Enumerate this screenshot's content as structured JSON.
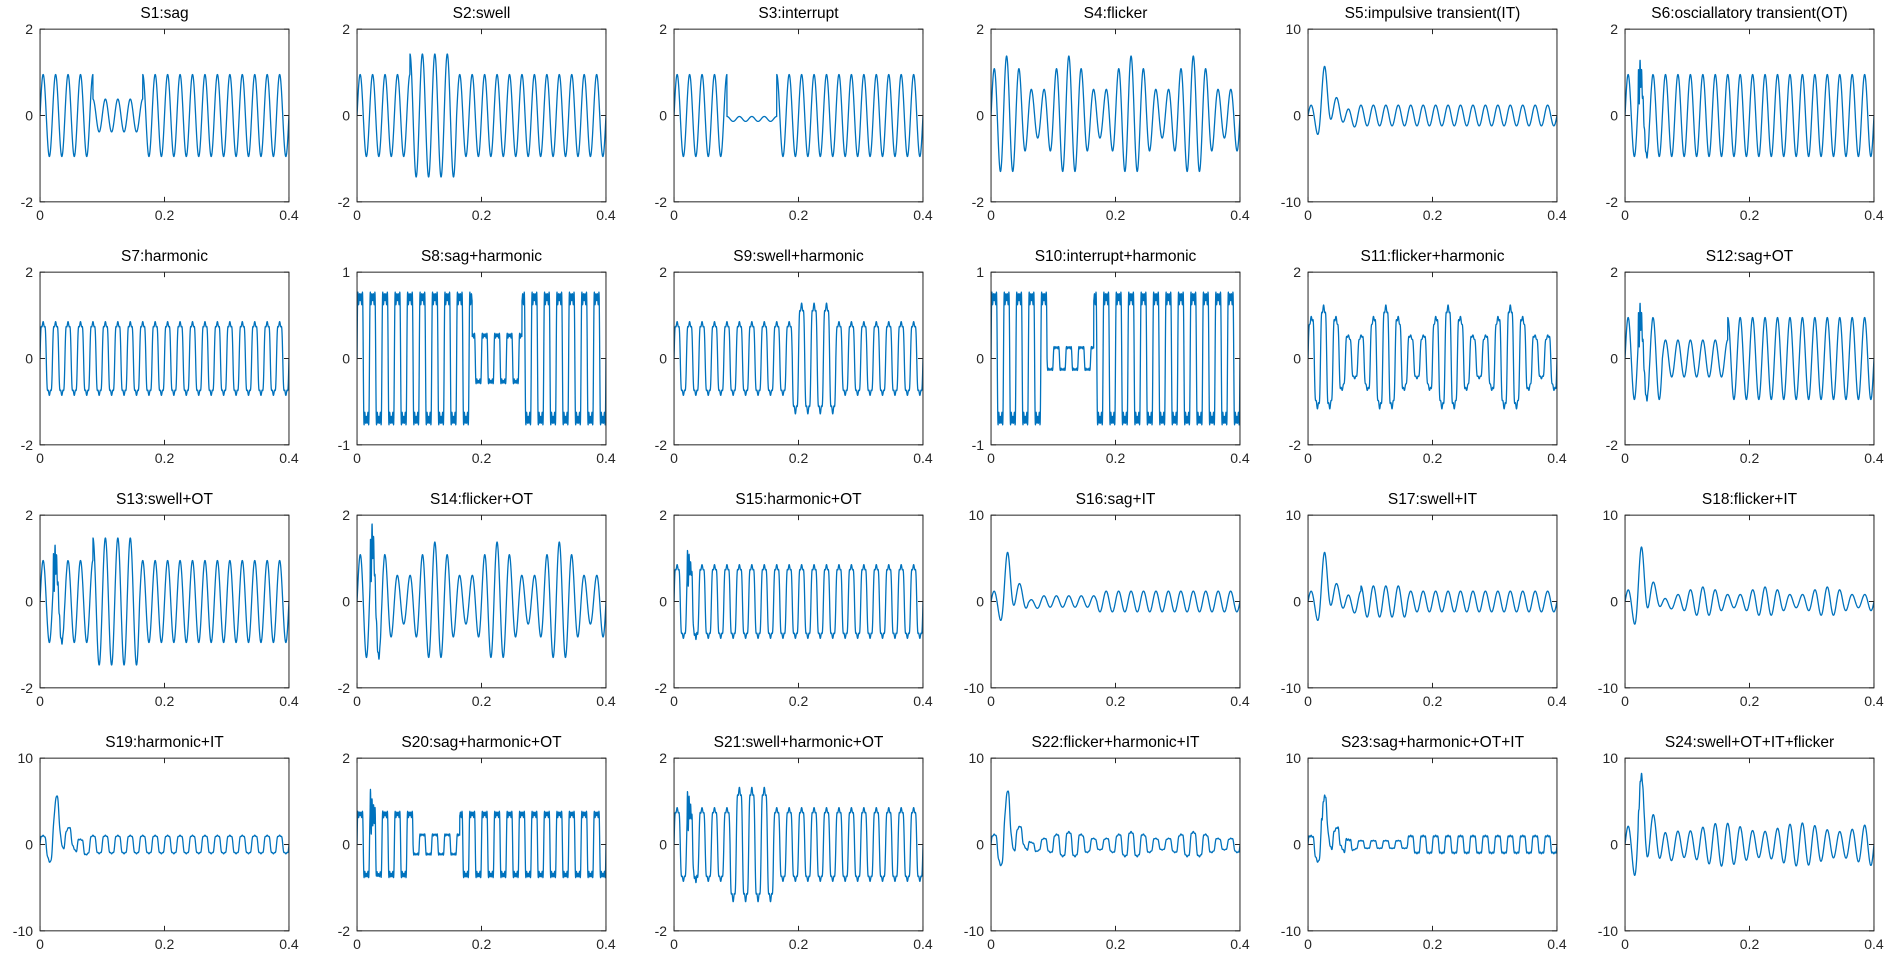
{
  "figure": {
    "title": "24 power-quality disturbance signal waveforms (4x6 grid)",
    "background": "#ffffff",
    "line_color": "#0072BD",
    "axis_color": "#262626",
    "tick_label_color": "#262626",
    "rows": 4,
    "cols": 6
  },
  "chart_data": {
    "type": "line",
    "grid": "off",
    "x_axis": {
      "range": [
        0,
        0.4
      ],
      "ticks": [
        0,
        0.2,
        0.4
      ],
      "unit": "s"
    },
    "fundamental_hz": 50,
    "plots": [
      {
        "id": "S1",
        "title": "S1:sag",
        "xlim": [
          0,
          0.4
        ],
        "ylim": [
          -2,
          2
        ],
        "xticks": [
          0,
          0.2,
          0.4
        ],
        "yticks": [
          -2,
          0,
          2
        ],
        "signal": {
          "fundamental_hz": 50,
          "amplitude": 0.95,
          "events": [
            {
              "type": "sag",
              "t1": 0.085,
              "t2": 0.165,
              "gain": 0.4
            }
          ]
        }
      },
      {
        "id": "S2",
        "title": "S2:swell",
        "xlim": [
          0,
          0.4
        ],
        "ylim": [
          -2,
          2
        ],
        "xticks": [
          0,
          0.2,
          0.4
        ],
        "yticks": [
          -2,
          0,
          2
        ],
        "signal": {
          "fundamental_hz": 50,
          "amplitude": 0.95,
          "events": [
            {
              "type": "swell",
              "t1": 0.085,
              "t2": 0.16,
              "gain": 1.5
            }
          ]
        }
      },
      {
        "id": "S3",
        "title": "S3:interrupt",
        "xlim": [
          0,
          0.4
        ],
        "ylim": [
          -2,
          2
        ],
        "xticks": [
          0,
          0.2,
          0.4
        ],
        "yticks": [
          -2,
          0,
          2
        ],
        "signal": {
          "fundamental_hz": 50,
          "amplitude": 0.95,
          "events": [
            {
              "type": "interrupt",
              "t1": 0.085,
              "t2": 0.165,
              "gain": 0.06,
              "dc": -0.08
            }
          ]
        }
      },
      {
        "id": "S4",
        "title": "S4:flicker",
        "xlim": [
          0,
          0.4
        ],
        "ylim": [
          -2,
          2
        ],
        "xticks": [
          0,
          0.2,
          0.4
        ],
        "yticks": [
          -2,
          0,
          2
        ],
        "signal": {
          "fundamental_hz": 50,
          "amplitude": 0.95,
          "flicker": {
            "depth": 0.45,
            "hz": 10
          }
        }
      },
      {
        "id": "S5",
        "title": "S5:impulsive transient(IT)",
        "xlim": [
          0,
          0.4
        ],
        "ylim": [
          -10,
          10
        ],
        "xticks": [
          0,
          0.2,
          0.4
        ],
        "yticks": [
          -10,
          0,
          10
        ],
        "signal": {
          "fundamental_hz": 50,
          "amplitude": 1.2,
          "transients": [
            {
              "type": "impulsive",
              "t0": 0.018,
              "amp": 4.8
            }
          ]
        }
      },
      {
        "id": "S6",
        "title": "S6:osciallatory transient(OT)",
        "xlim": [
          0,
          0.4
        ],
        "ylim": [
          -2,
          2
        ],
        "xticks": [
          0,
          0.2,
          0.4
        ],
        "yticks": [
          -2,
          0,
          2
        ],
        "signal": {
          "fundamental_hz": 50,
          "amplitude": 0.95,
          "transients": [
            {
              "type": "oscillatory",
              "t0": 0.021,
              "amp": 0.7,
              "hz": 400,
              "tau": 0.005
            }
          ]
        }
      },
      {
        "id": "S7",
        "title": "S7:harmonic",
        "xlim": [
          0,
          0.4
        ],
        "ylim": [
          -2,
          2
        ],
        "xticks": [
          0,
          0.2,
          0.4
        ],
        "yticks": [
          -2,
          0,
          2
        ],
        "signal": {
          "fundamental_hz": 50,
          "amplitude": 0.95,
          "harmonics": [
            [
              3,
              0.2
            ],
            [
              5,
              0.1
            ]
          ]
        }
      },
      {
        "id": "S8",
        "title": "S8:sag+harmonic",
        "xlim": [
          0,
          0.4
        ],
        "ylim": [
          -1,
          1
        ],
        "xticks": [
          0,
          0.2,
          0.4
        ],
        "yticks": [
          -1,
          0,
          1
        ],
        "signal": {
          "fundamental_hz": 50,
          "amplitude": 0.88,
          "harmonics": [
            [
              3,
              0.3
            ],
            [
              5,
              0.18
            ],
            [
              7,
              0.12
            ]
          ],
          "events": [
            {
              "type": "sag",
              "t1": 0.185,
              "t2": 0.265,
              "gain": 0.38
            }
          ]
        }
      },
      {
        "id": "S9",
        "title": "S9:swell+harmonic",
        "xlim": [
          0,
          0.4
        ],
        "ylim": [
          -2,
          2
        ],
        "xticks": [
          0,
          0.2,
          0.4
        ],
        "yticks": [
          -2,
          0,
          2
        ],
        "signal": {
          "fundamental_hz": 50,
          "amplitude": 0.95,
          "harmonics": [
            [
              3,
              0.2
            ],
            [
              5,
              0.1
            ]
          ],
          "events": [
            {
              "type": "swell",
              "t1": 0.19,
              "t2": 0.26,
              "gain": 1.5
            }
          ]
        }
      },
      {
        "id": "S10",
        "title": "S10:interrupt+harmonic",
        "xlim": [
          0,
          0.4
        ],
        "ylim": [
          -1,
          1
        ],
        "xticks": [
          0,
          0.2,
          0.4
        ],
        "yticks": [
          -1,
          0,
          1
        ],
        "signal": {
          "fundamental_hz": 50,
          "amplitude": 0.88,
          "harmonics": [
            [
              3,
              0.3
            ],
            [
              5,
              0.18
            ],
            [
              7,
              0.12
            ]
          ],
          "events": [
            {
              "type": "interrupt",
              "t1": 0.09,
              "t2": 0.165,
              "gain": 0.18
            }
          ]
        }
      },
      {
        "id": "S11",
        "title": "S11:flicker+harmonic",
        "xlim": [
          0,
          0.4
        ],
        "ylim": [
          -2,
          2
        ],
        "xticks": [
          0,
          0.2,
          0.4
        ],
        "yticks": [
          -2,
          0,
          2
        ],
        "signal": {
          "fundamental_hz": 50,
          "amplitude": 0.95,
          "harmonics": [
            [
              3,
              0.2
            ],
            [
              5,
              0.1
            ]
          ],
          "flicker": {
            "depth": 0.45,
            "hz": 10
          }
        }
      },
      {
        "id": "S12",
        "title": "S12:sag+OT",
        "xlim": [
          0,
          0.4
        ],
        "ylim": [
          -2,
          2
        ],
        "xticks": [
          0,
          0.2,
          0.4
        ],
        "yticks": [
          -2,
          0,
          2
        ],
        "signal": {
          "fundamental_hz": 50,
          "amplitude": 0.95,
          "transients": [
            {
              "type": "oscillatory",
              "t0": 0.021,
              "amp": 0.7,
              "hz": 400,
              "tau": 0.005
            }
          ],
          "events": [
            {
              "type": "sag",
              "t1": 0.06,
              "t2": 0.165,
              "gain": 0.45
            }
          ]
        }
      },
      {
        "id": "S13",
        "title": "S13:swell+OT",
        "xlim": [
          0,
          0.4
        ],
        "ylim": [
          -2,
          2
        ],
        "xticks": [
          0,
          0.2,
          0.4
        ],
        "yticks": [
          -2,
          0,
          2
        ],
        "signal": {
          "fundamental_hz": 50,
          "amplitude": 0.95,
          "transients": [
            {
              "type": "oscillatory",
              "t0": 0.021,
              "amp": 0.75,
              "hz": 400,
              "tau": 0.005
            }
          ],
          "events": [
            {
              "type": "swell",
              "t1": 0.085,
              "t2": 0.16,
              "gain": 1.55
            }
          ]
        }
      },
      {
        "id": "S14",
        "title": "S14:flicker+OT",
        "xlim": [
          0,
          0.4
        ],
        "ylim": [
          -2,
          2
        ],
        "xticks": [
          0,
          0.2,
          0.4
        ],
        "yticks": [
          -2,
          0,
          2
        ],
        "signal": {
          "fundamental_hz": 50,
          "amplitude": 0.95,
          "transients": [
            {
              "type": "oscillatory",
              "t0": 0.021,
              "amp": 0.9,
              "hz": 400,
              "tau": 0.005
            }
          ],
          "flicker": {
            "depth": 0.45,
            "hz": 10
          }
        }
      },
      {
        "id": "S15",
        "title": "S15:harmonic+OT",
        "xlim": [
          0,
          0.4
        ],
        "ylim": [
          -2,
          2
        ],
        "xticks": [
          0,
          0.2,
          0.4
        ],
        "yticks": [
          -2,
          0,
          2
        ],
        "signal": {
          "fundamental_hz": 50,
          "amplitude": 0.95,
          "harmonics": [
            [
              3,
              0.2
            ],
            [
              5,
              0.1
            ]
          ],
          "transients": [
            {
              "type": "oscillatory",
              "t0": 0.021,
              "amp": 0.55,
              "hz": 400,
              "tau": 0.005
            }
          ]
        }
      },
      {
        "id": "S16",
        "title": "S16:sag+IT",
        "xlim": [
          0,
          0.4
        ],
        "ylim": [
          -10,
          10
        ],
        "xticks": [
          0,
          0.2,
          0.4
        ],
        "yticks": [
          -10,
          0,
          10
        ],
        "signal": {
          "fundamental_hz": 50,
          "amplitude": 1.2,
          "transients": [
            {
              "type": "impulsive",
              "t0": 0.018,
              "amp": 4.8
            }
          ],
          "events": [
            {
              "type": "sag",
              "t1": 0.06,
              "t2": 0.17,
              "gain": 0.55
            }
          ]
        }
      },
      {
        "id": "S17",
        "title": "S17:swell+IT",
        "xlim": [
          0,
          0.4
        ],
        "ylim": [
          -10,
          10
        ],
        "xticks": [
          0,
          0.2,
          0.4
        ],
        "yticks": [
          -10,
          0,
          10
        ],
        "signal": {
          "fundamental_hz": 50,
          "amplitude": 1.2,
          "transients": [
            {
              "type": "impulsive",
              "t0": 0.018,
              "amp": 4.8
            }
          ],
          "events": [
            {
              "type": "swell",
              "t1": 0.085,
              "t2": 0.16,
              "gain": 1.5
            }
          ]
        }
      },
      {
        "id": "S18",
        "title": "S18:flicker+IT",
        "xlim": [
          0,
          0.4
        ],
        "ylim": [
          -10,
          10
        ],
        "xticks": [
          0,
          0.2,
          0.4
        ],
        "yticks": [
          -10,
          0,
          10
        ],
        "signal": {
          "fundamental_hz": 50,
          "amplitude": 1.2,
          "transients": [
            {
              "type": "impulsive",
              "t0": 0.018,
              "amp": 5.0
            }
          ],
          "flicker": {
            "depth": 0.4,
            "hz": 10
          }
        }
      },
      {
        "id": "S19",
        "title": "S19:harmonic+IT",
        "xlim": [
          0,
          0.4
        ],
        "ylim": [
          -10,
          10
        ],
        "xticks": [
          0,
          0.2,
          0.4
        ],
        "yticks": [
          -10,
          0,
          10
        ],
        "signal": {
          "fundamental_hz": 50,
          "amplitude": 1.2,
          "harmonics": [
            [
              3,
              0.2
            ],
            [
              5,
              0.1
            ]
          ],
          "transients": [
            {
              "type": "impulsive",
              "t0": 0.018,
              "amp": 4.8
            }
          ]
        }
      },
      {
        "id": "S20",
        "title": "S20:sag+harmonic+OT",
        "xlim": [
          0,
          0.4
        ],
        "ylim": [
          -2,
          2
        ],
        "xticks": [
          0,
          0.2,
          0.4
        ],
        "yticks": [
          -2,
          0,
          2
        ],
        "signal": {
          "fundamental_hz": 50,
          "amplitude": 0.88,
          "harmonics": [
            [
              3,
              0.3
            ],
            [
              5,
              0.18
            ],
            [
              7,
              0.12
            ]
          ],
          "transients": [
            {
              "type": "oscillatory",
              "t0": 0.021,
              "amp": 0.6,
              "hz": 400,
              "tau": 0.005
            }
          ],
          "events": [
            {
              "type": "sag",
              "t1": 0.09,
              "t2": 0.165,
              "gain": 0.32
            }
          ]
        }
      },
      {
        "id": "S21",
        "title": "S21:swell+harmonic+OT",
        "xlim": [
          0,
          0.4
        ],
        "ylim": [
          -2,
          2
        ],
        "xticks": [
          0,
          0.2,
          0.4
        ],
        "yticks": [
          -2,
          0,
          2
        ],
        "signal": {
          "fundamental_hz": 50,
          "amplitude": 0.95,
          "harmonics": [
            [
              3,
              0.2
            ],
            [
              5,
              0.1
            ]
          ],
          "transients": [
            {
              "type": "oscillatory",
              "t0": 0.021,
              "amp": 0.6,
              "hz": 400,
              "tau": 0.005
            }
          ],
          "events": [
            {
              "type": "swell",
              "t1": 0.09,
              "t2": 0.16,
              "gain": 1.55
            }
          ]
        }
      },
      {
        "id": "S22",
        "title": "S22:flicker+harmonic+IT",
        "xlim": [
          0,
          0.4
        ],
        "ylim": [
          -10,
          10
        ],
        "xticks": [
          0,
          0.2,
          0.4
        ],
        "yticks": [
          -10,
          0,
          10
        ],
        "signal": {
          "fundamental_hz": 50,
          "amplitude": 1.2,
          "harmonics": [
            [
              3,
              0.2
            ],
            [
              5,
              0.1
            ]
          ],
          "transients": [
            {
              "type": "impulsive",
              "t0": 0.018,
              "amp": 5.0
            }
          ],
          "flicker": {
            "depth": 0.4,
            "hz": 10
          }
        }
      },
      {
        "id": "S23",
        "title": "S23:sag+harmonic+OT+IT",
        "xlim": [
          0,
          0.4
        ],
        "ylim": [
          -10,
          10
        ],
        "xticks": [
          0,
          0.2,
          0.4
        ],
        "yticks": [
          -10,
          0,
          10
        ],
        "signal": {
          "fundamental_hz": 50,
          "amplitude": 1.2,
          "harmonics": [
            [
              3,
              0.25
            ],
            [
              5,
              0.15
            ]
          ],
          "transients": [
            {
              "type": "impulsive",
              "t0": 0.018,
              "amp": 4.8
            },
            {
              "type": "oscillatory",
              "t0": 0.021,
              "amp": 0.6,
              "hz": 400,
              "tau": 0.005
            }
          ],
          "events": [
            {
              "type": "sag",
              "t1": 0.07,
              "t2": 0.16,
              "gain": 0.45
            }
          ]
        }
      },
      {
        "id": "S24",
        "title": "S24:swell+OT+IT+flicker",
        "xlim": [
          0,
          0.4
        ],
        "ylim": [
          -10,
          10
        ],
        "xticks": [
          0,
          0.2,
          0.4
        ],
        "yticks": [
          -10,
          0,
          10
        ],
        "signal": {
          "fundamental_hz": 50,
          "amplitude": 2.0,
          "transients": [
            {
              "type": "impulsive",
              "t0": 0.018,
              "amp": 6.0
            },
            {
              "type": "oscillatory",
              "t0": 0.021,
              "amp": 0.8,
              "hz": 400,
              "tau": 0.005
            }
          ],
          "flicker": {
            "depth": 0.25,
            "hz": 8
          }
        }
      }
    ]
  }
}
